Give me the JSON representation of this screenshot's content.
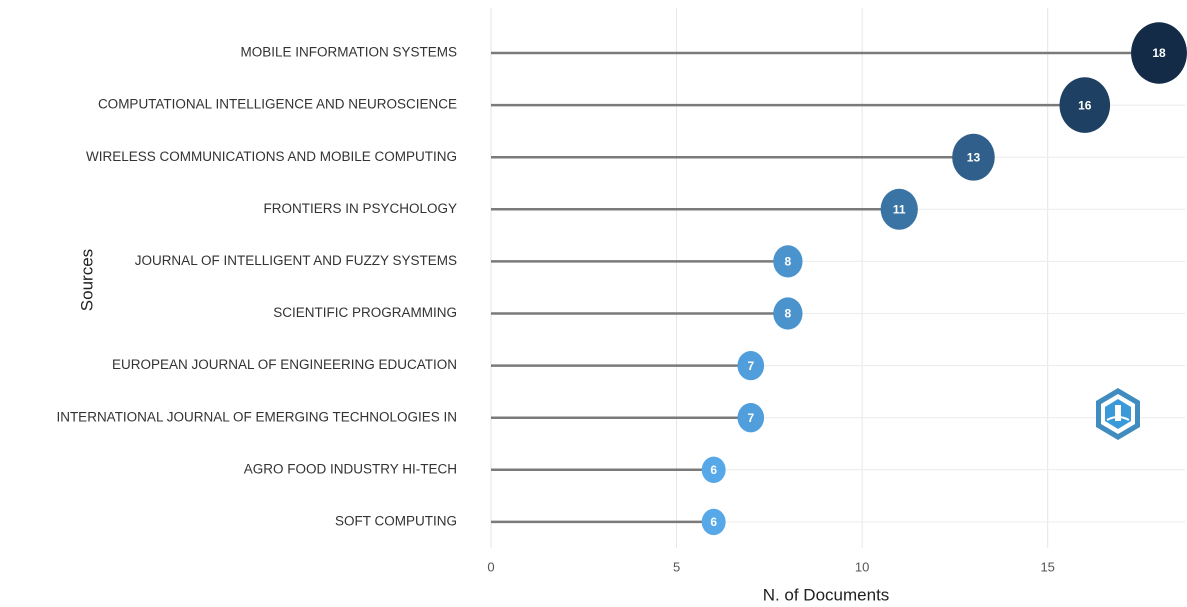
{
  "chart_data": {
    "type": "lollipop",
    "categories": [
      "MOBILE INFORMATION SYSTEMS",
      "COMPUTATIONAL INTELLIGENCE AND NEUROSCIENCE",
      "WIRELESS COMMUNICATIONS AND MOBILE COMPUTING",
      "FRONTIERS IN PSYCHOLOGY",
      "JOURNAL OF INTELLIGENT AND FUZZY SYSTEMS",
      "SCIENTIFIC PROGRAMMING",
      "EUROPEAN JOURNAL OF ENGINEERING EDUCATION",
      "INTERNATIONAL JOURNAL OF EMERGING TECHNOLOGIES IN",
      "AGRO FOOD INDUSTRY HI-TECH",
      "SOFT COMPUTING"
    ],
    "values": [
      18,
      16,
      13,
      11,
      8,
      8,
      7,
      7,
      6,
      6
    ],
    "xlabel": "N. of Documents",
    "ylabel": "Sources",
    "xlim": [
      0,
      18.7
    ],
    "xticks": [
      0,
      5,
      10,
      15
    ],
    "grid": true,
    "stem_color": "#7a7a7a",
    "color_scale": [
      "#56a8e8",
      "#132b47"
    ]
  }
}
